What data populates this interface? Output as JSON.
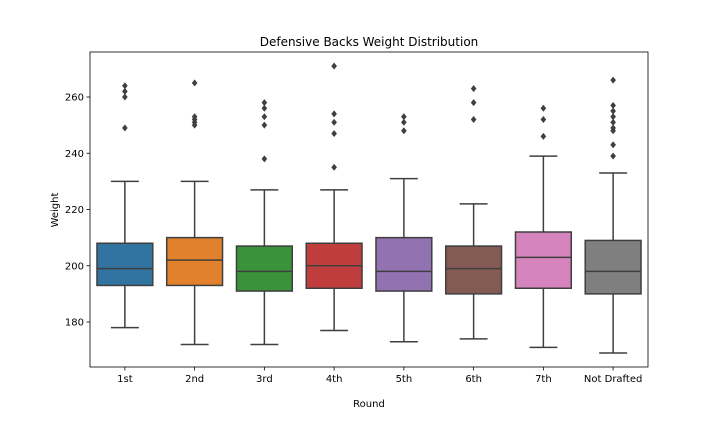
{
  "chart_data": {
    "type": "box",
    "title": "Defensive Backs Weight Distribution",
    "xlabel": "Round",
    "ylabel": "Weight",
    "ylim": [
      164,
      276
    ],
    "yticks": [
      180,
      200,
      220,
      240,
      260
    ],
    "grid": false,
    "categories": [
      "1st",
      "2nd",
      "3rd",
      "4th",
      "5th",
      "6th",
      "7th",
      "Not Drafted"
    ],
    "boxes": [
      {
        "category": "1st",
        "color": "#3274a1",
        "whisker_low": 178,
        "q1": 193,
        "median": 199,
        "q3": 208,
        "whisker_high": 230,
        "outliers": [
          249,
          260,
          262,
          264
        ]
      },
      {
        "category": "2nd",
        "color": "#e1812c",
        "whisker_low": 172,
        "q1": 193,
        "median": 202,
        "q3": 210,
        "whisker_high": 230,
        "outliers": [
          250,
          251,
          252,
          253,
          265
        ]
      },
      {
        "category": "3rd",
        "color": "#3a923a",
        "whisker_low": 172,
        "q1": 191,
        "median": 198,
        "q3": 207,
        "whisker_high": 227,
        "outliers": [
          238,
          250,
          253,
          256,
          258
        ]
      },
      {
        "category": "4th",
        "color": "#c03d3e",
        "whisker_low": 177,
        "q1": 192,
        "median": 200,
        "q3": 208,
        "whisker_high": 227,
        "outliers": [
          235,
          247,
          251,
          254,
          271
        ]
      },
      {
        "category": "5th",
        "color": "#9372b2",
        "whisker_low": 173,
        "q1": 191,
        "median": 198,
        "q3": 210,
        "whisker_high": 231,
        "outliers": [
          248,
          251,
          253
        ]
      },
      {
        "category": "6th",
        "color": "#845b53",
        "whisker_low": 174,
        "q1": 190,
        "median": 199,
        "q3": 207,
        "whisker_high": 222,
        "outliers": [
          252,
          258,
          263
        ]
      },
      {
        "category": "7th",
        "color": "#d684bd",
        "whisker_low": 171,
        "q1": 192,
        "median": 203,
        "q3": 212,
        "whisker_high": 239,
        "outliers": [
          246,
          252,
          256
        ]
      },
      {
        "category": "Not Drafted",
        "color": "#7f7f7f",
        "whisker_low": 169,
        "q1": 190,
        "median": 198,
        "q3": 209,
        "whisker_high": 233,
        "outliers": [
          239,
          243,
          248,
          249,
          251,
          253,
          255,
          257,
          266
        ]
      }
    ]
  }
}
